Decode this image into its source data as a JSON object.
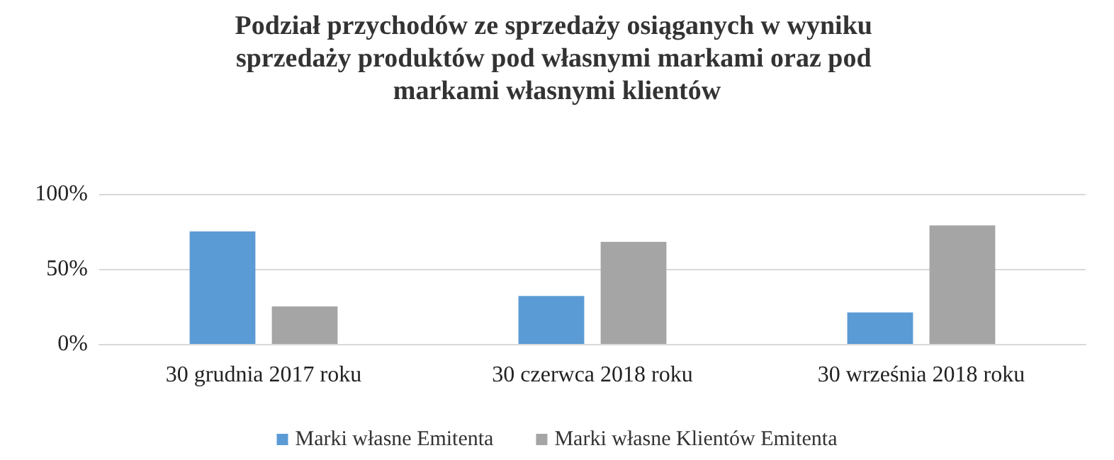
{
  "chart_data": {
    "type": "bar",
    "title": "Podział przychodów ze sprzedaży osiąganych w wyniku sprzedaży produktów pod własnymi markami oraz pod markami własnymi klientów",
    "categories": [
      "30 grudnia 2017 roku",
      "30 czerwca 2018 roku",
      "30 września 2018 roku"
    ],
    "series": [
      {
        "name": "Marki własne Emitenta",
        "color": "#5b9bd5",
        "values": [
          75,
          32,
          21
        ]
      },
      {
        "name": "Marki własne Klientów Emitenta",
        "color": "#a5a5a5",
        "values": [
          25,
          68,
          79
        ]
      }
    ],
    "ylim": [
      0,
      100
    ],
    "yticks": [
      {
        "value": 0,
        "label": "0%"
      },
      {
        "value": 50,
        "label": "50%"
      },
      {
        "value": 100,
        "label": "100%"
      }
    ],
    "grid": "y",
    "legend": "bottom"
  }
}
